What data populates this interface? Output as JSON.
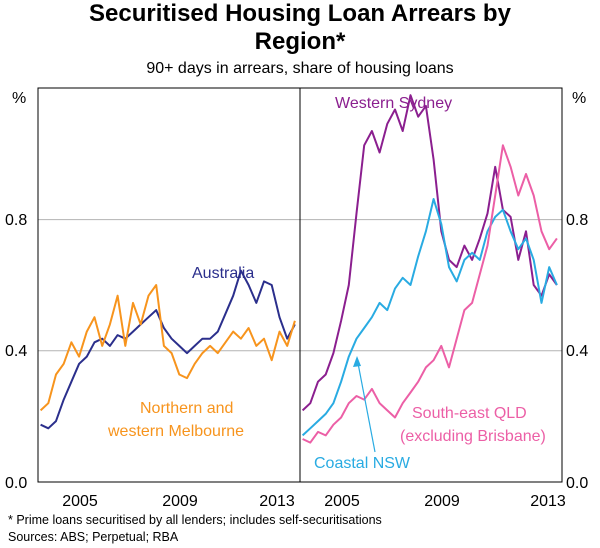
{
  "title_line1": "Securitised Housing Loan Arrears by",
  "title_line2": "Region*",
  "subtitle": "90+ days in arrears, share of housing loans",
  "footnote": "*     Prime loans securitised by all lenders; includes self-securitisations",
  "sources": "Sources: ABS; Perpetual; RBA",
  "colors": {
    "australia": "#2b2f8c",
    "northern_western_melbourne": "#f7941d",
    "western_sydney": "#8b1f8f",
    "coastal_nsw": "#29abe2",
    "south_east_qld": "#ec5fa6"
  },
  "chart_data": [
    {
      "type": "line",
      "panel": "left",
      "ylabel": "%",
      "ylim": [
        0,
        1.1
      ],
      "xlim": [
        2003.4,
        2013.6
      ],
      "x_ticks": [
        "2005",
        "2009",
        "2013"
      ],
      "y_ticks": [
        "0.0",
        "0.4",
        "0.8"
      ],
      "grid": true,
      "series": [
        {
          "name": "Australia",
          "points": [
            [
              2003.5,
              0.16
            ],
            [
              2003.8,
              0.15
            ],
            [
              2004.1,
              0.17
            ],
            [
              2004.4,
              0.23
            ],
            [
              2004.7,
              0.28
            ],
            [
              2005.0,
              0.33
            ],
            [
              2005.3,
              0.35
            ],
            [
              2005.6,
              0.39
            ],
            [
              2005.9,
              0.4
            ],
            [
              2006.2,
              0.38
            ],
            [
              2006.5,
              0.41
            ],
            [
              2006.8,
              0.4
            ],
            [
              2007.1,
              0.42
            ],
            [
              2007.4,
              0.44
            ],
            [
              2007.7,
              0.46
            ],
            [
              2008.0,
              0.48
            ],
            [
              2008.3,
              0.43
            ],
            [
              2008.6,
              0.4
            ],
            [
              2008.9,
              0.38
            ],
            [
              2009.2,
              0.36
            ],
            [
              2009.5,
              0.38
            ],
            [
              2009.8,
              0.4
            ],
            [
              2010.1,
              0.4
            ],
            [
              2010.4,
              0.42
            ],
            [
              2010.7,
              0.47
            ],
            [
              2011.0,
              0.52
            ],
            [
              2011.3,
              0.59
            ],
            [
              2011.6,
              0.55
            ],
            [
              2011.9,
              0.5
            ],
            [
              2012.2,
              0.56
            ],
            [
              2012.5,
              0.55
            ],
            [
              2012.8,
              0.46
            ],
            [
              2013.1,
              0.4
            ],
            [
              2013.4,
              0.44
            ]
          ]
        },
        {
          "name": "Northern and western Melbourne",
          "points": [
            [
              2003.5,
              0.2
            ],
            [
              2003.8,
              0.22
            ],
            [
              2004.1,
              0.3
            ],
            [
              2004.4,
              0.33
            ],
            [
              2004.7,
              0.39
            ],
            [
              2005.0,
              0.35
            ],
            [
              2005.3,
              0.42
            ],
            [
              2005.6,
              0.46
            ],
            [
              2005.9,
              0.38
            ],
            [
              2006.2,
              0.44
            ],
            [
              2006.5,
              0.52
            ],
            [
              2006.8,
              0.38
            ],
            [
              2007.1,
              0.5
            ],
            [
              2007.4,
              0.44
            ],
            [
              2007.7,
              0.52
            ],
            [
              2008.0,
              0.55
            ],
            [
              2008.3,
              0.38
            ],
            [
              2008.6,
              0.36
            ],
            [
              2008.9,
              0.3
            ],
            [
              2009.2,
              0.29
            ],
            [
              2009.5,
              0.33
            ],
            [
              2009.8,
              0.36
            ],
            [
              2010.1,
              0.38
            ],
            [
              2010.4,
              0.36
            ],
            [
              2010.7,
              0.39
            ],
            [
              2011.0,
              0.42
            ],
            [
              2011.3,
              0.4
            ],
            [
              2011.6,
              0.43
            ],
            [
              2011.9,
              0.38
            ],
            [
              2012.2,
              0.4
            ],
            [
              2012.5,
              0.34
            ],
            [
              2012.8,
              0.42
            ],
            [
              2013.1,
              0.38
            ],
            [
              2013.4,
              0.45
            ]
          ]
        }
      ],
      "labels": [
        {
          "series": "Australia",
          "text": "Australia"
        },
        {
          "series": "Northern and western Melbourne",
          "text": [
            "Northern and",
            "western Melbourne"
          ]
        }
      ]
    },
    {
      "type": "line",
      "panel": "right",
      "ylabel": "%",
      "ylim": [
        0,
        1.1
      ],
      "xlim": [
        2003.4,
        2013.6
      ],
      "x_ticks": [
        "2005",
        "2009",
        "2013"
      ],
      "y_ticks": [
        "0.0",
        "0.4",
        "0.8"
      ],
      "grid": true,
      "series": [
        {
          "name": "Western Sydney",
          "points": [
            [
              2003.5,
              0.2
            ],
            [
              2003.8,
              0.22
            ],
            [
              2004.1,
              0.28
            ],
            [
              2004.4,
              0.3
            ],
            [
              2004.7,
              0.36
            ],
            [
              2005.0,
              0.45
            ],
            [
              2005.3,
              0.55
            ],
            [
              2005.6,
              0.75
            ],
            [
              2005.9,
              0.94
            ],
            [
              2006.2,
              0.98
            ],
            [
              2006.5,
              0.92
            ],
            [
              2006.8,
              1.0
            ],
            [
              2007.1,
              1.04
            ],
            [
              2007.4,
              0.98
            ],
            [
              2007.7,
              1.08
            ],
            [
              2008.0,
              1.02
            ],
            [
              2008.3,
              1.05
            ],
            [
              2008.6,
              0.9
            ],
            [
              2008.9,
              0.7
            ],
            [
              2009.2,
              0.62
            ],
            [
              2009.5,
              0.6
            ],
            [
              2009.8,
              0.66
            ],
            [
              2010.1,
              0.62
            ],
            [
              2010.4,
              0.68
            ],
            [
              2010.7,
              0.75
            ],
            [
              2011.0,
              0.88
            ],
            [
              2011.3,
              0.76
            ],
            [
              2011.6,
              0.74
            ],
            [
              2011.9,
              0.62
            ],
            [
              2012.2,
              0.7
            ],
            [
              2012.5,
              0.55
            ],
            [
              2012.8,
              0.52
            ],
            [
              2013.1,
              0.58
            ],
            [
              2013.4,
              0.55
            ]
          ]
        },
        {
          "name": "Coastal NSW",
          "points": [
            [
              2003.5,
              0.13
            ],
            [
              2003.8,
              0.15
            ],
            [
              2004.1,
              0.17
            ],
            [
              2004.4,
              0.19
            ],
            [
              2004.7,
              0.22
            ],
            [
              2005.0,
              0.28
            ],
            [
              2005.3,
              0.35
            ],
            [
              2005.6,
              0.4
            ],
            [
              2005.9,
              0.43
            ],
            [
              2006.2,
              0.46
            ],
            [
              2006.5,
              0.5
            ],
            [
              2006.8,
              0.48
            ],
            [
              2007.1,
              0.54
            ],
            [
              2007.4,
              0.57
            ],
            [
              2007.7,
              0.55
            ],
            [
              2008.0,
              0.63
            ],
            [
              2008.3,
              0.7
            ],
            [
              2008.6,
              0.79
            ],
            [
              2008.9,
              0.72
            ],
            [
              2009.2,
              0.6
            ],
            [
              2009.5,
              0.56
            ],
            [
              2009.8,
              0.62
            ],
            [
              2010.1,
              0.64
            ],
            [
              2010.4,
              0.62
            ],
            [
              2010.7,
              0.7
            ],
            [
              2011.0,
              0.74
            ],
            [
              2011.3,
              0.76
            ],
            [
              2011.6,
              0.7
            ],
            [
              2011.9,
              0.65
            ],
            [
              2012.2,
              0.68
            ],
            [
              2012.5,
              0.62
            ],
            [
              2012.8,
              0.5
            ],
            [
              2013.1,
              0.6
            ],
            [
              2013.4,
              0.55
            ]
          ]
        },
        {
          "name": "South-east QLD",
          "points": [
            [
              2003.5,
              0.12
            ],
            [
              2003.8,
              0.11
            ],
            [
              2004.1,
              0.14
            ],
            [
              2004.4,
              0.13
            ],
            [
              2004.7,
              0.16
            ],
            [
              2005.0,
              0.18
            ],
            [
              2005.3,
              0.22
            ],
            [
              2005.6,
              0.24
            ],
            [
              2005.9,
              0.23
            ],
            [
              2006.2,
              0.26
            ],
            [
              2006.5,
              0.22
            ],
            [
              2006.8,
              0.2
            ],
            [
              2007.1,
              0.18
            ],
            [
              2007.4,
              0.22
            ],
            [
              2007.7,
              0.25
            ],
            [
              2008.0,
              0.28
            ],
            [
              2008.3,
              0.32
            ],
            [
              2008.6,
              0.34
            ],
            [
              2008.9,
              0.38
            ],
            [
              2009.2,
              0.32
            ],
            [
              2009.5,
              0.4
            ],
            [
              2009.8,
              0.48
            ],
            [
              2010.1,
              0.5
            ],
            [
              2010.4,
              0.58
            ],
            [
              2010.7,
              0.66
            ],
            [
              2011.0,
              0.8
            ],
            [
              2011.3,
              0.94
            ],
            [
              2011.6,
              0.88
            ],
            [
              2011.9,
              0.8
            ],
            [
              2012.2,
              0.86
            ],
            [
              2012.5,
              0.8
            ],
            [
              2012.8,
              0.7
            ],
            [
              2013.1,
              0.65
            ],
            [
              2013.4,
              0.68
            ]
          ]
        }
      ],
      "labels": [
        {
          "series": "Western Sydney",
          "text": "Western Sydney"
        },
        {
          "series": "Coastal NSW",
          "text": "Coastal NSW"
        },
        {
          "series": "South-east QLD",
          "text": [
            "South-east QLD",
            "(excluding Brisbane)"
          ]
        }
      ]
    }
  ]
}
